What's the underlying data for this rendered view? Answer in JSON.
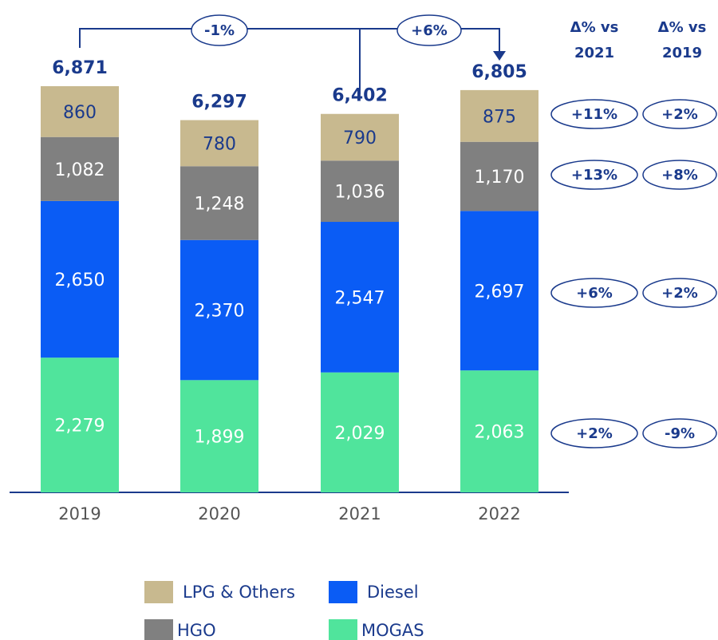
{
  "chart_data": {
    "type": "stacked_bar",
    "categories": [
      "2019",
      "2020",
      "2021",
      "2022"
    ],
    "series": [
      {
        "name": "MOGAS",
        "color": "#50e49c",
        "values": [
          2279,
          1899,
          2029,
          2063
        ],
        "value_labels": [
          "2,279",
          "1,899",
          "2,029",
          "2,063"
        ]
      },
      {
        "name": "Diesel",
        "color": "#0a5cf5",
        "values": [
          2650,
          2370,
          2547,
          2697
        ],
        "value_labels": [
          "2,650",
          "2,370",
          "2,547",
          "2,697"
        ]
      },
      {
        "name": "HGO",
        "color": "#808080",
        "values": [
          1082,
          1248,
          1036,
          1170
        ],
        "value_labels": [
          "1,082",
          "1,248",
          "1,036",
          "1,170"
        ]
      },
      {
        "name": "LPG & Others",
        "color": "#c8b98f",
        "values": [
          860,
          780,
          790,
          875
        ],
        "value_labels": [
          "860",
          "780",
          "790",
          "875"
        ]
      }
    ],
    "totals": [
      6871,
      6297,
      6402,
      6805
    ],
    "total_labels": [
      "6,871",
      "6,297",
      "6,402",
      "6,805"
    ],
    "annotations": [
      {
        "value": -1,
        "label": "-1%"
      },
      {
        "value": 6,
        "label": "+6%"
      }
    ],
    "change_headers": [
      "Δ% vs 2021",
      "Δ% vs 2019"
    ],
    "change_vs_2021": [
      {
        "value": 2,
        "label": "+2%"
      },
      {
        "value": 6,
        "label": "+6%"
      },
      {
        "value": 13,
        "label": "+13%"
      },
      {
        "value": 11,
        "label": "+11%"
      }
    ],
    "change_vs_2019": [
      {
        "value": -9,
        "label": "-9%"
      },
      {
        "value": 2,
        "label": "+2%"
      },
      {
        "value": 8,
        "label": "+8%"
      },
      {
        "value": 2,
        "label": "+2%"
      }
    ]
  }
}
